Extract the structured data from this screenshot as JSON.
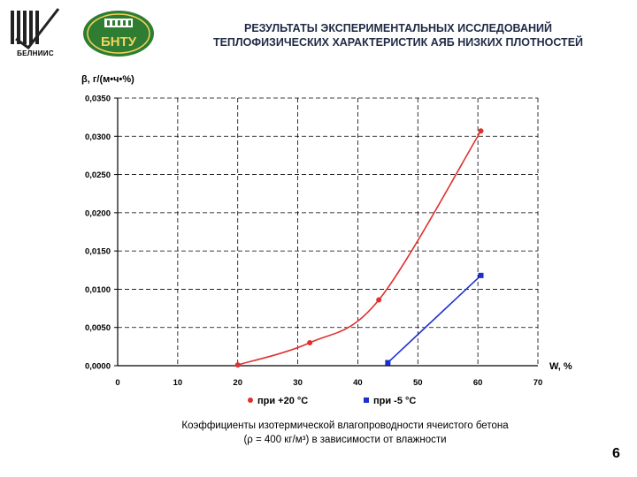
{
  "header": {
    "logo_left_caption": "БЕЛНИИС",
    "logo_right_text": "БНТУ",
    "title_line1": "РЕЗУЛЬТАТЫ ЭКСПЕРИМЕНТАЛЬНЫХ ИССЛЕДОВАНИЙ",
    "title_line2": "ТЕПЛОФИЗИЧЕСКИХ ХАРАКТЕРИСТИК АЯБ НИЗКИХ ПЛОТНОСТЕЙ"
  },
  "caption": {
    "line1": "Коэффициенты изотермической влагопроводности ячеистого бетона",
    "line2": "(ρ = 400 кг/м³) в зависимости от влажности"
  },
  "page_number": "6",
  "colors": {
    "series1": "#e03030",
    "series2": "#1e2fd0",
    "title": "#1f2a44"
  },
  "chart_data": {
    "type": "line",
    "ylabel": "β, г/(м•ч•%)",
    "xlabel": "W, %",
    "xlim": [
      0,
      70
    ],
    "ylim": [
      0,
      0.035
    ],
    "x_ticks": [
      "0",
      "10",
      "20",
      "30",
      "40",
      "50",
      "60",
      "70"
    ],
    "y_ticks": [
      "0,0000",
      "0,0050",
      "0,0100",
      "0,0150",
      "0,0200",
      "0,0250",
      "0,0300",
      "0,0350"
    ],
    "grid": true,
    "legend_position": "bottom",
    "series": [
      {
        "name": "при +20 °С",
        "marker": "circle",
        "color": "#e03030",
        "x": [
          20,
          32,
          43.5,
          60.5
        ],
        "y": [
          0.0001,
          0.003,
          0.0086,
          0.0307
        ]
      },
      {
        "name": "при -5 °С",
        "marker": "square",
        "color": "#1e2fd0",
        "x": [
          45,
          60.5
        ],
        "y": [
          0.0004,
          0.0118
        ]
      }
    ]
  }
}
